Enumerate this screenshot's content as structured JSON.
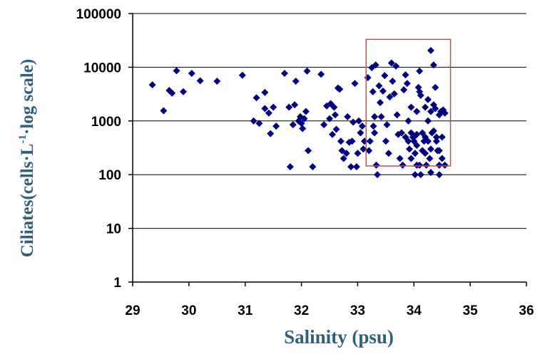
{
  "chart_data": {
    "type": "scatter",
    "xlabel": "Salinity (psu)",
    "ylabel_parts": [
      "Ciliates(cells·L",
      "-1",
      "·log scale)"
    ],
    "xlim": [
      29,
      36
    ],
    "ylim": [
      1,
      100000
    ],
    "y_scale": "log",
    "x_ticks": [
      "29",
      "30",
      "31",
      "32",
      "33",
      "34",
      "35",
      "36"
    ],
    "y_ticks": [
      "1",
      "10",
      "100",
      "1000",
      "10000",
      "100000"
    ],
    "grid": "horizontal",
    "marker": "diamond",
    "colors": {
      "marker": "#000080",
      "highlight_box": "#c0504d",
      "axis": "#000000",
      "grid": "#000000",
      "axis_title": "#2f5f7a"
    },
    "highlight_region": {
      "x": [
        33.15,
        34.65
      ],
      "y": [
        145,
        33000
      ]
    },
    "points": [
      [
        29.35,
        4700
      ],
      [
        29.55,
        1550
      ],
      [
        29.65,
        3700
      ],
      [
        29.7,
        3300
      ],
      [
        29.78,
        8600
      ],
      [
        29.9,
        3500
      ],
      [
        30.05,
        7700
      ],
      [
        30.2,
        5600
      ],
      [
        30.5,
        5500
      ],
      [
        30.95,
        7100
      ],
      [
        31.15,
        1000
      ],
      [
        31.2,
        2700
      ],
      [
        31.25,
        900
      ],
      [
        31.35,
        3400
      ],
      [
        31.35,
        1700
      ],
      [
        31.42,
        1400
      ],
      [
        31.45,
        580
      ],
      [
        31.5,
        1800
      ],
      [
        31.55,
        800
      ],
      [
        31.7,
        7700
      ],
      [
        31.78,
        1800
      ],
      [
        31.8,
        140
      ],
      [
        31.85,
        850
      ],
      [
        31.88,
        2000
      ],
      [
        31.9,
        5500
      ],
      [
        31.95,
        1000
      ],
      [
        31.98,
        1200
      ],
      [
        32.0,
        900
      ],
      [
        32.02,
        720
      ],
      [
        32.05,
        1100
      ],
      [
        32.08,
        1500
      ],
      [
        32.1,
        8500
      ],
      [
        32.12,
        280
      ],
      [
        32.2,
        140
      ],
      [
        32.35,
        7400
      ],
      [
        32.4,
        850
      ],
      [
        32.45,
        1900
      ],
      [
        32.5,
        1100
      ],
      [
        32.52,
        2100
      ],
      [
        32.55,
        560
      ],
      [
        32.58,
        1800
      ],
      [
        32.6,
        1300
      ],
      [
        32.62,
        700
      ],
      [
        32.65,
        4100
      ],
      [
        32.68,
        3900
      ],
      [
        32.7,
        420
      ],
      [
        32.72,
        280
      ],
      [
        32.75,
        200
      ],
      [
        32.8,
        250
      ],
      [
        32.82,
        1200
      ],
      [
        32.85,
        400
      ],
      [
        32.88,
        140
      ],
      [
        32.9,
        420
      ],
      [
        32.92,
        950
      ],
      [
        32.95,
        5000
      ],
      [
        32.98,
        140
      ],
      [
        33.0,
        250
      ],
      [
        33.02,
        1000
      ],
      [
        33.05,
        600
      ],
      [
        33.08,
        800
      ],
      [
        33.1,
        300
      ],
      [
        33.12,
        420
      ],
      [
        33.18,
        6400
      ],
      [
        33.2,
        280
      ],
      [
        33.22,
        420
      ],
      [
        33.25,
        9800
      ],
      [
        33.27,
        3500
      ],
      [
        33.28,
        800
      ],
      [
        33.3,
        1200
      ],
      [
        33.3,
        600
      ],
      [
        33.32,
        11000
      ],
      [
        33.33,
        150
      ],
      [
        33.35,
        100
      ],
      [
        33.38,
        4500
      ],
      [
        33.4,
        2200
      ],
      [
        33.42,
        1200
      ],
      [
        33.45,
        3600
      ],
      [
        33.48,
        7000
      ],
      [
        33.5,
        420
      ],
      [
        33.52,
        850
      ],
      [
        33.55,
        250
      ],
      [
        33.57,
        2800
      ],
      [
        33.6,
        12000
      ],
      [
        33.62,
        5500
      ],
      [
        33.65,
        3200
      ],
      [
        33.68,
        10500
      ],
      [
        33.7,
        1300
      ],
      [
        33.72,
        560
      ],
      [
        33.75,
        200
      ],
      [
        33.78,
        600
      ],
      [
        33.8,
        150
      ],
      [
        33.82,
        3800
      ],
      [
        33.85,
        7200
      ],
      [
        33.88,
        5000
      ],
      [
        33.9,
        1000
      ],
      [
        33.92,
        300
      ],
      [
        33.95,
        200
      ],
      [
        33.98,
        500
      ],
      [
        34.0,
        500
      ],
      [
        34.02,
        250
      ],
      [
        34.05,
        150
      ],
      [
        34.08,
        4200
      ],
      [
        34.1,
        8500
      ],
      [
        34.12,
        3000
      ],
      [
        34.15,
        600
      ],
      [
        34.18,
        420
      ],
      [
        34.2,
        250
      ],
      [
        34.22,
        150
      ],
      [
        34.25,
        1000
      ],
      [
        34.28,
        200
      ],
      [
        34.3,
        20500
      ],
      [
        34.32,
        600
      ],
      [
        34.35,
        11000
      ],
      [
        34.38,
        4200
      ],
      [
        34.4,
        500
      ],
      [
        34.42,
        280
      ],
      [
        34.45,
        150
      ],
      [
        34.48,
        1500
      ],
      [
        34.5,
        500
      ],
      [
        34.52,
        1600
      ],
      [
        34.55,
        1400
      ],
      [
        33.85,
        500
      ],
      [
        33.9,
        420
      ],
      [
        33.95,
        600
      ],
      [
        34.0,
        420
      ],
      [
        34.05,
        350
      ],
      [
        34.05,
        560
      ],
      [
        34.1,
        150
      ],
      [
        34.15,
        280
      ],
      [
        34.2,
        500
      ],
      [
        34.25,
        420
      ],
      [
        34.3,
        300
      ],
      [
        34.35,
        650
      ],
      [
        34.4,
        420
      ],
      [
        34.45,
        280
      ],
      [
        34.5,
        200
      ],
      [
        34.55,
        150
      ],
      [
        34.02,
        100
      ],
      [
        34.12,
        100
      ],
      [
        34.3,
        110
      ],
      [
        34.45,
        100
      ],
      [
        33.95,
        1800
      ],
      [
        34.05,
        1500
      ],
      [
        34.2,
        1800
      ],
      [
        34.3,
        1500
      ],
      [
        34.38,
        1700
      ],
      [
        34.1,
        3500
      ],
      [
        34.25,
        2500
      ],
      [
        34.35,
        2000
      ],
      [
        34.45,
        1300
      ]
    ]
  }
}
